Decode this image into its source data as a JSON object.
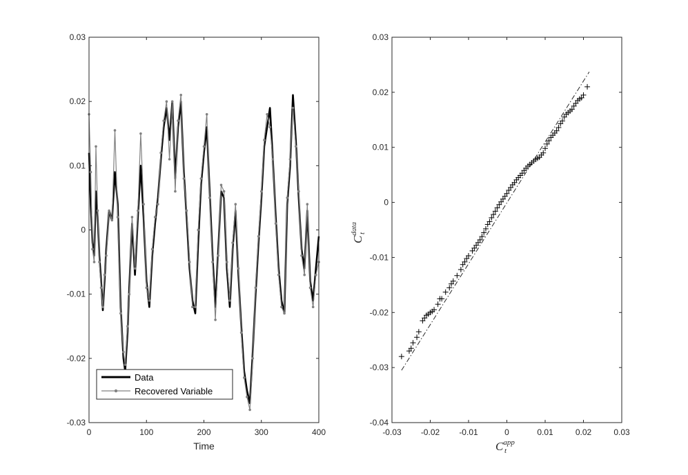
{
  "colors": {
    "data_series": "#000000",
    "recovered_series": "#808080",
    "axes": "#262626",
    "background": "#ffffff"
  },
  "chart_data": [
    {
      "type": "line",
      "xlabel": "Time",
      "ylabel": "",
      "xlim": [
        0,
        400
      ],
      "ylim": [
        -0.03,
        0.03
      ],
      "xticks": [
        0,
        100,
        200,
        300,
        400
      ],
      "yticks": [
        -0.03,
        -0.02,
        -0.01,
        0,
        0.01,
        0.02,
        0.03
      ],
      "xtick_labels": [
        "0",
        "100",
        "200",
        "300",
        "400"
      ],
      "ytick_labels": [
        "-0.03",
        "-0.02",
        "-0.01",
        "0",
        "0.01",
        "0.02",
        "0.03"
      ],
      "legend_placement": "bottom-left",
      "grid": false,
      "series": [
        {
          "name": "Data",
          "marker": "none",
          "x": [
            0,
            3,
            6,
            9,
            12,
            15,
            18,
            21,
            24,
            27,
            30,
            35,
            40,
            45,
            50,
            55,
            60,
            63,
            67,
            70,
            75,
            80,
            85,
            90,
            95,
            100,
            105,
            110,
            115,
            120,
            125,
            130,
            135,
            140,
            145,
            150,
            155,
            160,
            165,
            170,
            175,
            180,
            185,
            190,
            195,
            200,
            205,
            210,
            215,
            220,
            225,
            230,
            235,
            240,
            245,
            250,
            255,
            260,
            265,
            270,
            275,
            280,
            285,
            290,
            295,
            300,
            305,
            310,
            315,
            320,
            325,
            330,
            335,
            340,
            345,
            350,
            355,
            360,
            365,
            370,
            375,
            380,
            385,
            390,
            395,
            400
          ],
          "y": [
            0.012,
            0.004,
            -0.002,
            -0.004,
            0.006,
            0.002,
            -0.004,
            -0.008,
            -0.0125,
            -0.008,
            -0.003,
            0.003,
            0.0015,
            0.009,
            0.004,
            -0.012,
            -0.02,
            -0.022,
            -0.016,
            -0.009,
            0.001,
            -0.007,
            0.002,
            0.01,
            0.002,
            -0.008,
            -0.012,
            -0.004,
            0.001,
            0.005,
            0.011,
            0.016,
            0.019,
            0.014,
            0.02,
            0.008,
            0.016,
            0.02,
            0.009,
            0.002,
            -0.006,
            -0.011,
            -0.013,
            -0.002,
            0.007,
            0.012,
            0.016,
            0.006,
            -0.004,
            -0.012,
            -0.003,
            0.006,
            0.005,
            -0.006,
            -0.012,
            -0.003,
            0.003,
            -0.007,
            -0.015,
            -0.022,
            -0.025,
            -0.027,
            -0.019,
            -0.01,
            -0.002,
            0.005,
            0.013,
            0.016,
            0.019,
            0.011,
            0.002,
            -0.006,
            -0.011,
            -0.013,
            0.004,
            0.01,
            0.021,
            0.014,
            0.005,
            -0.003,
            -0.006,
            0.003,
            -0.008,
            -0.011,
            -0.006,
            -0.001
          ]
        },
        {
          "name": "Recovered Variable",
          "marker": "dot",
          "x": [
            0,
            3,
            6,
            9,
            12,
            15,
            18,
            21,
            24,
            27,
            30,
            35,
            40,
            45,
            50,
            55,
            60,
            63,
            67,
            70,
            75,
            80,
            85,
            90,
            95,
            100,
            105,
            110,
            115,
            120,
            125,
            130,
            135,
            140,
            145,
            150,
            155,
            160,
            165,
            170,
            175,
            180,
            185,
            190,
            195,
            200,
            205,
            210,
            215,
            220,
            225,
            230,
            235,
            240,
            245,
            250,
            255,
            260,
            265,
            270,
            275,
            280,
            285,
            290,
            295,
            300,
            305,
            310,
            315,
            320,
            325,
            330,
            335,
            340,
            345,
            350,
            355,
            360,
            365,
            370,
            375,
            380,
            385,
            390,
            395,
            400
          ],
          "y": [
            0.018,
            0.009,
            -0.003,
            -0.005,
            0.013,
            0.003,
            -0.005,
            -0.009,
            -0.012,
            -0.007,
            -0.004,
            0.003,
            0.0015,
            0.0155,
            0.002,
            -0.013,
            -0.019,
            -0.021,
            -0.015,
            -0.01,
            0.002,
            -0.006,
            0.003,
            0.015,
            0.004,
            -0.009,
            -0.011,
            -0.003,
            0.002,
            0.004,
            0.012,
            0.017,
            0.02,
            0.011,
            0.02,
            0.006,
            0.017,
            0.021,
            0.008,
            0.003,
            -0.005,
            -0.012,
            -0.012,
            0.0,
            0.008,
            0.013,
            0.018,
            0.005,
            -0.005,
            -0.014,
            -0.004,
            0.007,
            0.006,
            -0.005,
            -0.011,
            -0.002,
            0.004,
            -0.006,
            -0.016,
            -0.023,
            -0.026,
            -0.028,
            -0.02,
            -0.009,
            -0.001,
            0.006,
            0.014,
            0.018,
            0.016,
            0.011,
            0.001,
            -0.007,
            -0.012,
            -0.013,
            0.005,
            0.011,
            0.019,
            0.013,
            0.006,
            -0.004,
            -0.007,
            0.004,
            -0.009,
            -0.012,
            -0.007,
            -0.005
          ]
        }
      ]
    },
    {
      "type": "scatter",
      "xlabel": "C_t^app",
      "ylabel": "C_t^data",
      "xlabel_parts": {
        "base": "C",
        "sub": "t",
        "sup": "app"
      },
      "ylabel_parts": {
        "base": "C",
        "sub": "t",
        "sup": "data"
      },
      "xlim": [
        -0.03,
        0.03
      ],
      "ylim": [
        -0.04,
        0.03
      ],
      "xticks": [
        -0.03,
        -0.02,
        -0.01,
        0,
        0.01,
        0.02,
        0.03
      ],
      "yticks": [
        -0.04,
        -0.03,
        -0.02,
        -0.01,
        0,
        0.01,
        0.02,
        0.03
      ],
      "xtick_labels": [
        "-0.03",
        "-0.02",
        "-0.01",
        "0",
        "0.01",
        "0.02",
        "0.03"
      ],
      "ytick_labels": [
        "-0.04",
        "-0.03",
        "-0.02",
        "-0.01",
        "0",
        "0.01",
        "0.02",
        "0.03"
      ],
      "grid": false,
      "marker": "plus",
      "reference_line": {
        "style": "dash-dot",
        "x": [
          -0.0275,
          0.0215
        ],
        "y": [
          -0.0305,
          0.0237
        ]
      },
      "x": [
        -0.0275,
        -0.0255,
        -0.025,
        -0.0245,
        -0.0235,
        -0.023,
        -0.022,
        -0.0215,
        -0.021,
        -0.0205,
        -0.02,
        -0.0195,
        -0.019,
        -0.018,
        -0.0175,
        -0.017,
        -0.016,
        -0.015,
        -0.0145,
        -0.014,
        -0.013,
        -0.012,
        -0.0115,
        -0.011,
        -0.0105,
        -0.01,
        -0.009,
        -0.0085,
        -0.008,
        -0.0075,
        -0.007,
        -0.0065,
        -0.006,
        -0.0055,
        -0.005,
        -0.0045,
        -0.004,
        -0.0035,
        -0.003,
        -0.0025,
        -0.002,
        -0.0015,
        -0.001,
        -0.0005,
        0.0,
        0.0005,
        0.001,
        0.0015,
        0.002,
        0.0025,
        0.003,
        0.0035,
        0.004,
        0.0045,
        0.005,
        0.0055,
        0.006,
        0.0065,
        0.007,
        0.0075,
        0.008,
        0.0085,
        0.009,
        0.0095,
        0.01,
        0.0105,
        0.011,
        0.0115,
        0.012,
        0.0125,
        0.013,
        0.0135,
        0.014,
        0.0145,
        0.015,
        0.0155,
        0.016,
        0.0165,
        0.017,
        0.0175,
        0.018,
        0.0185,
        0.019,
        0.0195,
        0.02,
        0.021
      ],
      "y": [
        -0.028,
        -0.027,
        -0.0265,
        -0.0255,
        -0.0245,
        -0.0235,
        -0.0215,
        -0.021,
        -0.0205,
        -0.0203,
        -0.02,
        -0.0198,
        -0.0195,
        -0.0185,
        -0.0175,
        -0.0175,
        -0.0163,
        -0.0155,
        -0.0148,
        -0.0143,
        -0.0133,
        -0.0122,
        -0.0113,
        -0.0108,
        -0.0102,
        -0.0097,
        -0.0088,
        -0.0083,
        -0.0078,
        -0.0073,
        -0.0068,
        -0.0062,
        -0.0055,
        -0.0048,
        -0.004,
        -0.0035,
        -0.0028,
        -0.0022,
        -0.0016,
        -0.001,
        -0.0004,
        0.0001,
        0.0006,
        0.0011,
        0.0016,
        0.0022,
        0.0027,
        0.0032,
        0.0036,
        0.0041,
        0.0045,
        0.0049,
        0.0053,
        0.0058,
        0.0062,
        0.0066,
        0.0069,
        0.0072,
        0.0075,
        0.0078,
        0.008,
        0.0082,
        0.0086,
        0.009,
        0.0098,
        0.0106,
        0.0112,
        0.0118,
        0.0122,
        0.0126,
        0.013,
        0.0136,
        0.0143,
        0.0148,
        0.0155,
        0.016,
        0.0163,
        0.0166,
        0.0169,
        0.0175,
        0.018,
        0.0185,
        0.0188,
        0.019,
        0.0195,
        0.021
      ]
    }
  ]
}
